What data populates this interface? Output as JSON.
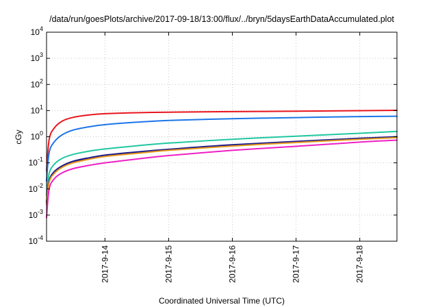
{
  "chart_data": {
    "type": "line",
    "title": "/data/run/goesPlots/archive/2017-09-18/13:00/flux/../bryn/5daysEarthDataAccumulated.plot",
    "xlabel": "Coordinated Universal Time (UTC)",
    "ylabel": "cGy",
    "yscale": "log",
    "ylim": [
      0.0001,
      10000
    ],
    "y_ticks": [
      {
        "value": 0.0001,
        "base": "10",
        "exp": "-4"
      },
      {
        "value": 0.001,
        "base": "10",
        "exp": "-3"
      },
      {
        "value": 0.01,
        "base": "10",
        "exp": "-2"
      },
      {
        "value": 0.1,
        "base": "10",
        "exp": "-1"
      },
      {
        "value": 1,
        "base": "10",
        "exp": "0"
      },
      {
        "value": 10,
        "base": "10",
        "exp": "1"
      },
      {
        "value": 100,
        "base": "10",
        "exp": "2"
      },
      {
        "value": 1000,
        "base": "10",
        "exp": "3"
      },
      {
        "value": 10000,
        "base": "10",
        "exp": "4"
      }
    ],
    "xlim": [
      "2017-09-13 02:00",
      "2017-09-18 14:00"
    ],
    "x_ticks": [
      "2017-9-14",
      "2017-9-15",
      "2017-9-16",
      "2017-9-17",
      "2017-9-18"
    ],
    "grid": true,
    "series": [
      {
        "color": "#e8141c",
        "points": [
          [
            "2017-09-13 02:00",
            0.05
          ],
          [
            "2017-09-13 03:00",
            0.8
          ],
          [
            "2017-09-13 05:00",
            2.2
          ],
          [
            "2017-09-13 08:00",
            4.0
          ],
          [
            "2017-09-13 12:00",
            5.5
          ],
          [
            "2017-09-13 18:00",
            6.8
          ],
          [
            "2017-09-14 00:00",
            7.6
          ],
          [
            "2017-09-14 12:00",
            8.3
          ],
          [
            "2017-09-15 00:00",
            8.7
          ],
          [
            "2017-09-16 00:00",
            9.1
          ],
          [
            "2017-09-17 00:00",
            9.5
          ],
          [
            "2017-09-18 00:00",
            9.9
          ],
          [
            "2017-09-18 14:00",
            10.2
          ]
        ]
      },
      {
        "color": "#1a75e8",
        "points": [
          [
            "2017-09-13 02:00",
            0.02
          ],
          [
            "2017-09-13 03:00",
            0.25
          ],
          [
            "2017-09-13 05:00",
            0.65
          ],
          [
            "2017-09-13 08:00",
            1.2
          ],
          [
            "2017-09-13 12:00",
            1.8
          ],
          [
            "2017-09-13 18:00",
            2.4
          ],
          [
            "2017-09-14 00:00",
            2.9
          ],
          [
            "2017-09-14 12:00",
            3.6
          ],
          [
            "2017-09-15 00:00",
            4.2
          ],
          [
            "2017-09-16 00:00",
            4.9
          ],
          [
            "2017-09-17 00:00",
            5.4
          ],
          [
            "2017-09-18 00:00",
            5.9
          ],
          [
            "2017-09-18 14:00",
            6.1
          ]
        ]
      },
      {
        "color": "#1fc7a0",
        "points": [
          [
            "2017-09-13 02:00",
            0.006
          ],
          [
            "2017-09-13 03:00",
            0.04
          ],
          [
            "2017-09-13 05:00",
            0.09
          ],
          [
            "2017-09-13 08:00",
            0.15
          ],
          [
            "2017-09-13 12:00",
            0.21
          ],
          [
            "2017-09-13 18:00",
            0.28
          ],
          [
            "2017-09-14 00:00",
            0.34
          ],
          [
            "2017-09-14 12:00",
            0.45
          ],
          [
            "2017-09-15 00:00",
            0.57
          ],
          [
            "2017-09-16 00:00",
            0.8
          ],
          [
            "2017-09-17 00:00",
            1.05
          ],
          [
            "2017-09-18 00:00",
            1.35
          ],
          [
            "2017-09-18 14:00",
            1.6
          ]
        ]
      },
      {
        "color": "#7a1e8c",
        "points": [
          [
            "2017-09-13 02:00",
            0.003
          ],
          [
            "2017-09-13 03:00",
            0.02
          ],
          [
            "2017-09-13 05:00",
            0.045
          ],
          [
            "2017-09-13 08:00",
            0.075
          ],
          [
            "2017-09-13 12:00",
            0.11
          ],
          [
            "2017-09-13 18:00",
            0.15
          ],
          [
            "2017-09-14 00:00",
            0.19
          ],
          [
            "2017-09-14 12:00",
            0.25
          ],
          [
            "2017-09-15 00:00",
            0.32
          ],
          [
            "2017-09-16 00:00",
            0.47
          ],
          [
            "2017-09-17 00:00",
            0.63
          ],
          [
            "2017-09-18 00:00",
            0.83
          ],
          [
            "2017-09-18 14:00",
            0.96
          ]
        ]
      },
      {
        "color": "#1c1c8c",
        "points": [
          [
            "2017-09-13 02:00",
            0.003
          ],
          [
            "2017-09-13 03:00",
            0.021
          ],
          [
            "2017-09-13 05:00",
            0.047
          ],
          [
            "2017-09-13 08:00",
            0.078
          ],
          [
            "2017-09-13 12:00",
            0.115
          ],
          [
            "2017-09-13 18:00",
            0.156
          ],
          [
            "2017-09-14 00:00",
            0.197
          ],
          [
            "2017-09-14 12:00",
            0.26
          ],
          [
            "2017-09-15 00:00",
            0.33
          ],
          [
            "2017-09-16 00:00",
            0.49
          ],
          [
            "2017-09-17 00:00",
            0.66
          ],
          [
            "2017-09-18 00:00",
            0.87
          ],
          [
            "2017-09-18 14:00",
            1.0
          ]
        ]
      },
      {
        "color": "#e89a1a",
        "points": [
          [
            "2017-09-13 02:00",
            0.0025
          ],
          [
            "2017-09-13 03:00",
            0.018
          ],
          [
            "2017-09-13 05:00",
            0.04
          ],
          [
            "2017-09-13 08:00",
            0.068
          ],
          [
            "2017-09-13 12:00",
            0.1
          ],
          [
            "2017-09-13 18:00",
            0.137
          ],
          [
            "2017-09-14 00:00",
            0.175
          ],
          [
            "2017-09-14 12:00",
            0.23
          ],
          [
            "2017-09-15 00:00",
            0.3
          ],
          [
            "2017-09-16 00:00",
            0.44
          ],
          [
            "2017-09-17 00:00",
            0.6
          ],
          [
            "2017-09-18 00:00",
            0.8
          ],
          [
            "2017-09-18 14:00",
            0.92
          ]
        ]
      },
      {
        "color": "#ee1fc4",
        "points": [
          [
            "2017-09-13 02:00",
            0.0008
          ],
          [
            "2017-09-13 03:00",
            0.01
          ],
          [
            "2017-09-13 05:00",
            0.025
          ],
          [
            "2017-09-13 08:00",
            0.042
          ],
          [
            "2017-09-13 12:00",
            0.06
          ],
          [
            "2017-09-13 18:00",
            0.08
          ],
          [
            "2017-09-14 00:00",
            0.1
          ],
          [
            "2017-09-14 12:00",
            0.14
          ],
          [
            "2017-09-15 00:00",
            0.19
          ],
          [
            "2017-09-16 00:00",
            0.3
          ],
          [
            "2017-09-17 00:00",
            0.43
          ],
          [
            "2017-09-18 00:00",
            0.62
          ],
          [
            "2017-09-18 14:00",
            0.74
          ]
        ]
      }
    ]
  }
}
